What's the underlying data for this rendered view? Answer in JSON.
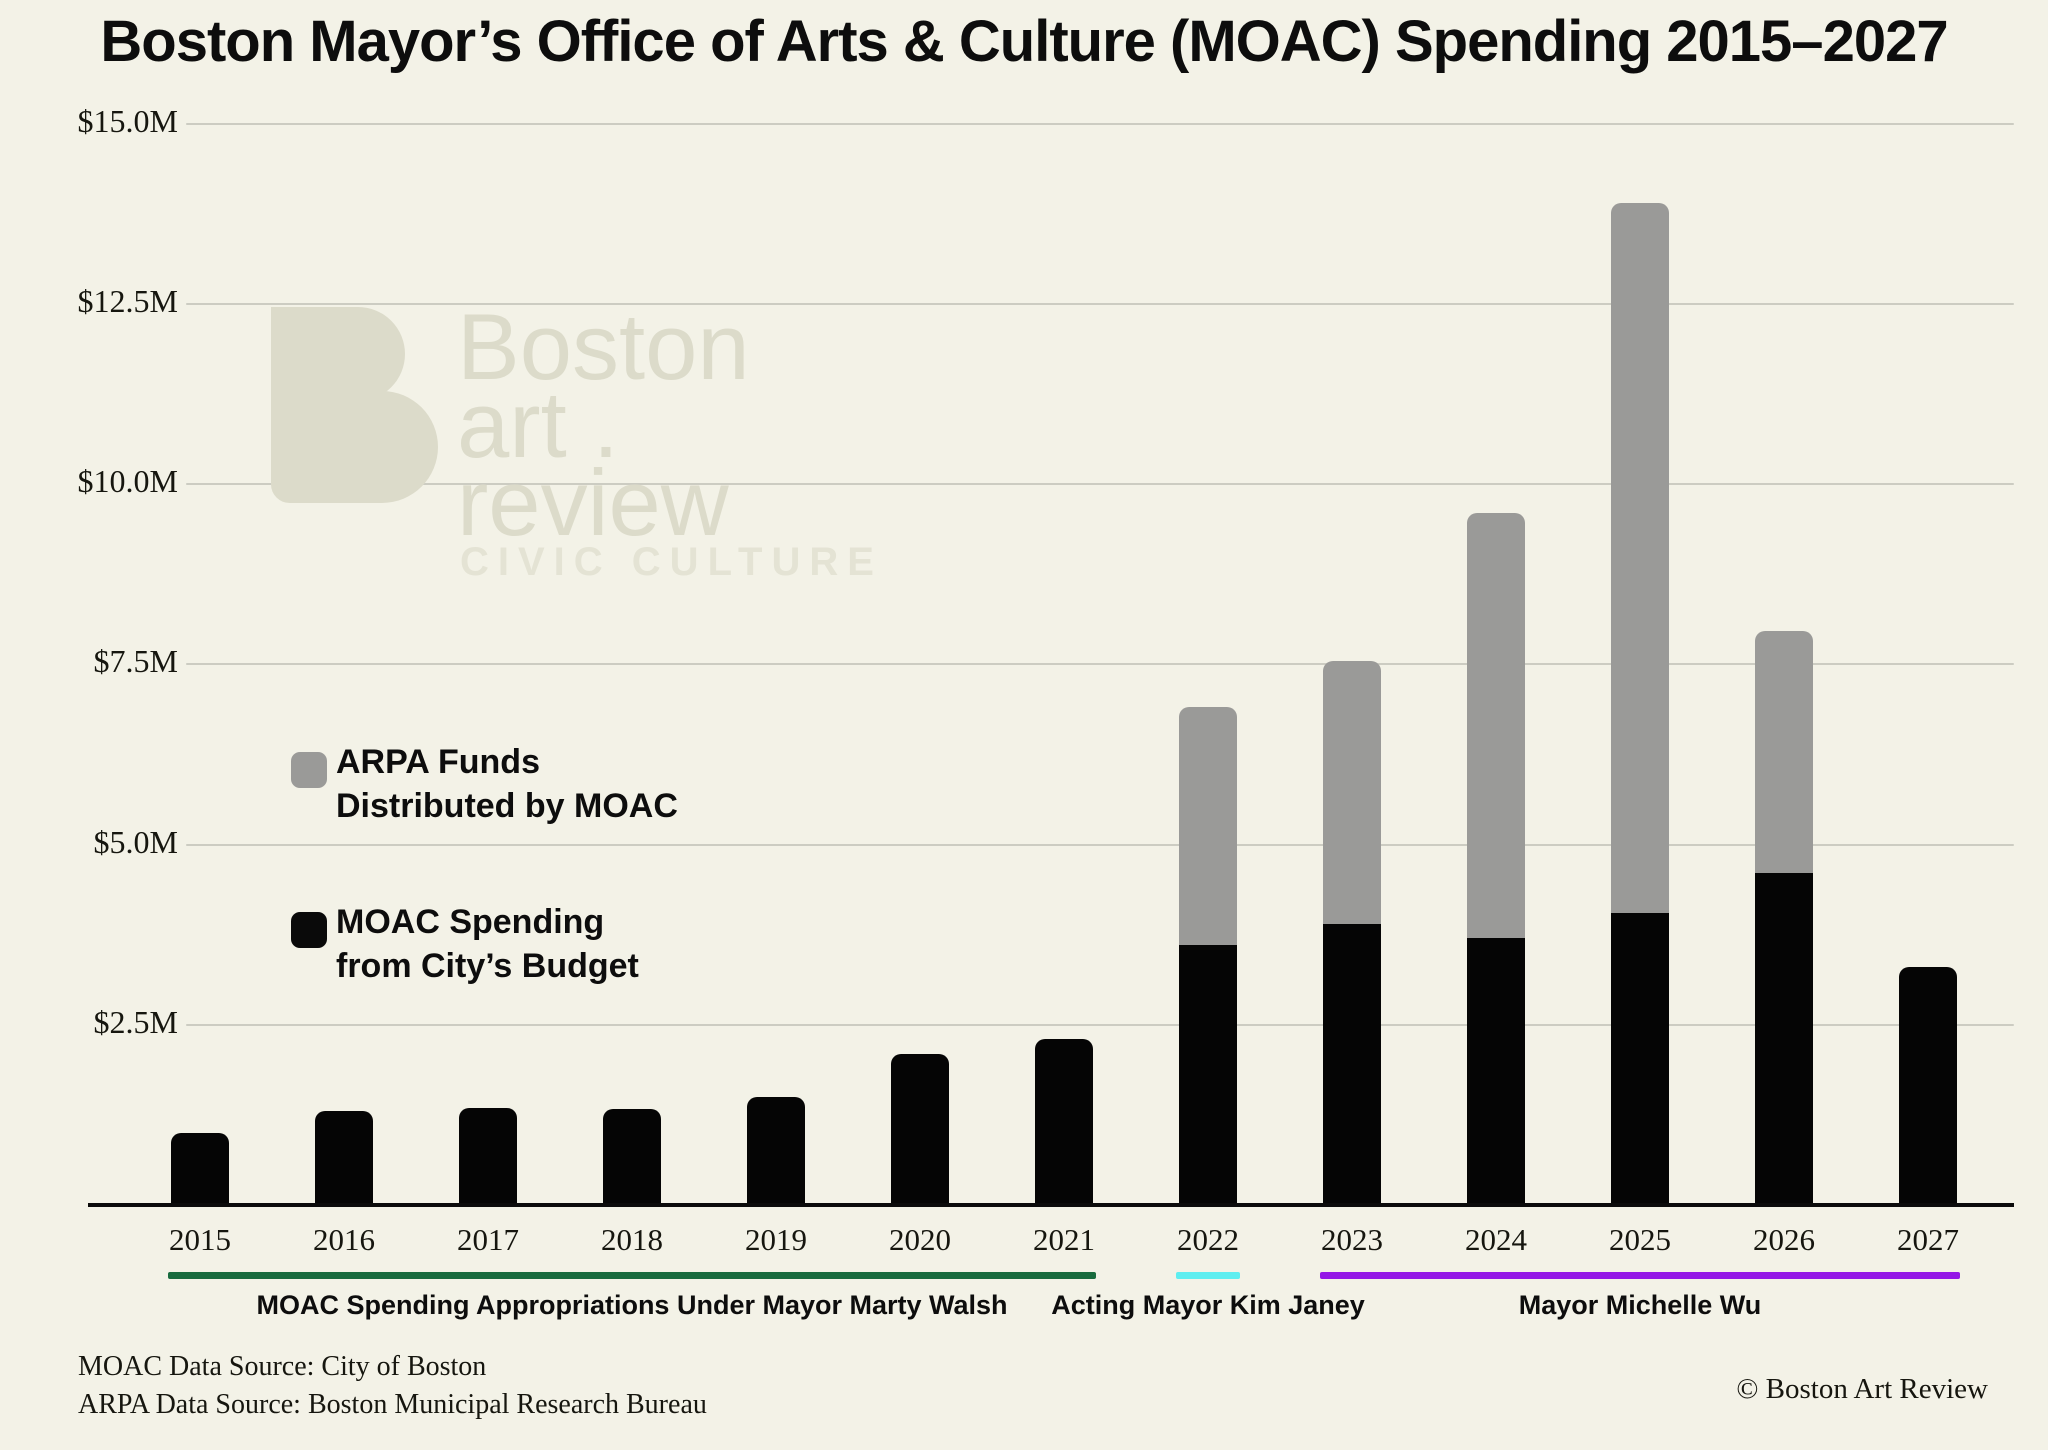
{
  "title": "Boston Mayor’s Office of Arts & Culture (MOAC) Spending 2015–2027",
  "watermark": {
    "line1": "Boston",
    "line2": "art .",
    "line3": "review",
    "tagline": "CIVIC CULTURE"
  },
  "legend": {
    "arpa_line1": "ARPA Funds",
    "arpa_line2": "Distributed by MOAC",
    "budget_line1": "MOAC Spending",
    "budget_line2": "from City’s Budget"
  },
  "chart_data": {
    "type": "bar",
    "stacked": true,
    "title": "Boston Mayor’s Office of Arts & Culture (MOAC) Spending 2015–2027",
    "categories": [
      "2015",
      "2016",
      "2017",
      "2018",
      "2019",
      "2020",
      "2021",
      "2022",
      "2023",
      "2024",
      "2025",
      "2026",
      "2027"
    ],
    "series": [
      {
        "name": "MOAC Spending from City’s Budget",
        "color": "#050505",
        "values": [
          1.0,
          1.3,
          1.35,
          1.33,
          1.5,
          2.1,
          2.3,
          3.6,
          3.9,
          3.7,
          4.05,
          4.6,
          3.3
        ]
      },
      {
        "name": "ARPA Funds Distributed by MOAC",
        "color": "#9a9a98",
        "values": [
          0,
          0,
          0,
          0,
          0,
          0,
          0,
          3.3,
          3.65,
          5.9,
          9.85,
          3.35,
          0
        ]
      }
    ],
    "yticks": [
      {
        "label": "$15.0M",
        "value": 15.0
      },
      {
        "label": "$12.5M",
        "value": 12.5
      },
      {
        "label": "$10.0M",
        "value": 10.0
      },
      {
        "label": "$7.5M",
        "value": 7.5
      },
      {
        "label": "$5.0M",
        "value": 5.0
      },
      {
        "label": "$2.5M",
        "value": 2.5
      }
    ],
    "ylim": [
      0,
      15.5
    ],
    "grid": true,
    "legend_position": "left-middle",
    "units": "USD millions"
  },
  "eras": [
    {
      "label": "MOAC Spending Appropriations Under Mayor Marty Walsh",
      "color": "#186b3e",
      "start": "2015",
      "end": "2021"
    },
    {
      "label": "Acting Mayor Kim Janey",
      "color": "#5eeef0",
      "start": "2022",
      "end": "2022"
    },
    {
      "label": "Mayor Michelle Wu",
      "color": "#9418e6",
      "start": "2023",
      "end": "2027"
    }
  ],
  "footnotes": {
    "line1": "MOAC Data Source: City of Boston",
    "line2": "ARPA Data Source: Boston Municipal Research Bureau",
    "copyright": "© Boston Art Review"
  },
  "colors": {
    "background": "#f3f2e7",
    "bar_black": "#050505",
    "bar_gray": "#9a9a98",
    "gridline": "#ccccc2",
    "axis": "#0b0b0b",
    "walsh_green": "#186b3e",
    "janey_cyan": "#5eeef0",
    "wu_purple": "#9418e6",
    "watermark": "#dcdbca"
  }
}
